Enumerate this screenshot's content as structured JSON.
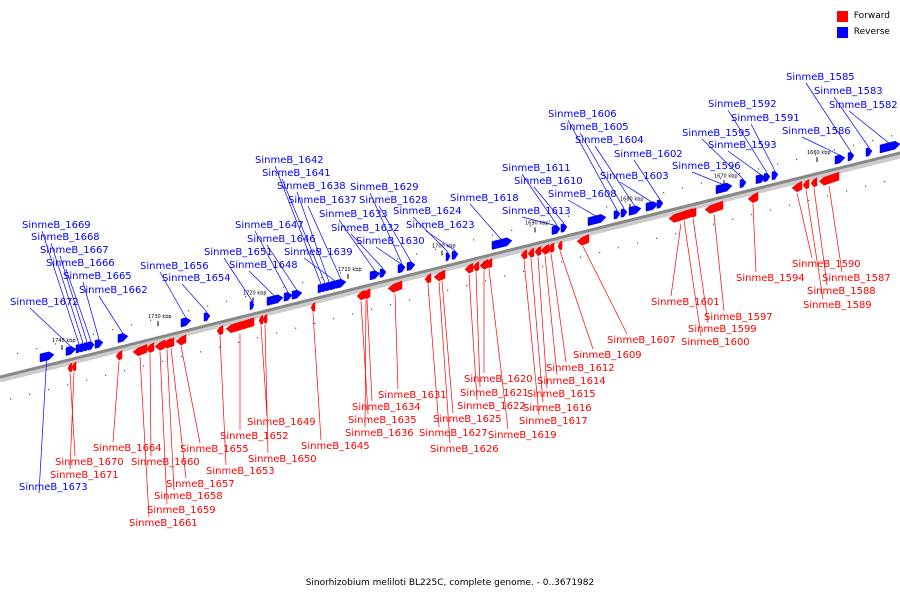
{
  "legend": [
    {
      "label": "Forward",
      "color": "#ff0000"
    },
    {
      "label": "Reverse",
      "color": "#0000ff"
    }
  ],
  "caption": "Sinorhizobium meliloti BL225C, complete genome. - 0..3671982",
  "colors": {
    "forward": "#ff0000",
    "reverse": "#0000ff",
    "axis": "#888888"
  },
  "ticks": [
    "1740 kbp",
    "1730 kbp",
    "1720 kbp",
    "1710 kbp",
    "1700 kbp",
    "1690 kbp",
    "1680 kbp",
    "1670 kbp",
    "1660 kbp"
  ],
  "genes": [
    {
      "name": "SinmeB_1673",
      "strand": "reverse"
    },
    {
      "name": "SinmeB_1672",
      "strand": "reverse"
    },
    {
      "name": "SinmeB_1671",
      "strand": "forward"
    },
    {
      "name": "SinmeB_1670",
      "strand": "forward"
    },
    {
      "name": "SinmeB_1669",
      "strand": "reverse"
    },
    {
      "name": "SinmeB_1668",
      "strand": "reverse"
    },
    {
      "name": "SinmeB_1667",
      "strand": "reverse"
    },
    {
      "name": "SinmeB_1666",
      "strand": "reverse"
    },
    {
      "name": "SinmeB_1665",
      "strand": "reverse"
    },
    {
      "name": "SinmeB_1664",
      "strand": "forward"
    },
    {
      "name": "SinmeB_1662",
      "strand": "reverse"
    },
    {
      "name": "SinmeB_1661",
      "strand": "forward"
    },
    {
      "name": "SinmeB_1660",
      "strand": "forward"
    },
    {
      "name": "SinmeB_1659",
      "strand": "forward"
    },
    {
      "name": "SinmeB_1658",
      "strand": "forward"
    },
    {
      "name": "SinmeB_1657",
      "strand": "forward"
    },
    {
      "name": "SinmeB_1656",
      "strand": "reverse"
    },
    {
      "name": "SinmeB_1655",
      "strand": "forward"
    },
    {
      "name": "SinmeB_1654",
      "strand": "reverse"
    },
    {
      "name": "SinmeB_1653",
      "strand": "forward"
    },
    {
      "name": "SinmeB_1652",
      "strand": "forward"
    },
    {
      "name": "SinmeB_1651",
      "strand": "reverse"
    },
    {
      "name": "SinmeB_1650",
      "strand": "forward"
    },
    {
      "name": "SinmeB_1649",
      "strand": "forward"
    },
    {
      "name": "SinmeB_1648",
      "strand": "reverse"
    },
    {
      "name": "SinmeB_1647",
      "strand": "reverse"
    },
    {
      "name": "SinmeB_1646",
      "strand": "reverse"
    },
    {
      "name": "SinmeB_1645",
      "strand": "forward"
    },
    {
      "name": "SinmeB_1642",
      "strand": "reverse"
    },
    {
      "name": "SinmeB_1641",
      "strand": "reverse"
    },
    {
      "name": "SinmeB_1639",
      "strand": "reverse"
    },
    {
      "name": "SinmeB_1638",
      "strand": "reverse"
    },
    {
      "name": "SinmeB_1637",
      "strand": "reverse"
    },
    {
      "name": "SinmeB_1636",
      "strand": "forward"
    },
    {
      "name": "SinmeB_1635",
      "strand": "forward"
    },
    {
      "name": "SinmeB_1634",
      "strand": "forward"
    },
    {
      "name": "SinmeB_1633",
      "strand": "reverse"
    },
    {
      "name": "SinmeB_1632",
      "strand": "reverse"
    },
    {
      "name": "SinmeB_1631",
      "strand": "forward"
    },
    {
      "name": "SinmeB_1630",
      "strand": "reverse"
    },
    {
      "name": "SinmeB_1629",
      "strand": "reverse"
    },
    {
      "name": "SinmeB_1628",
      "strand": "reverse"
    },
    {
      "name": "SinmeB_1627",
      "strand": "forward"
    },
    {
      "name": "SinmeB_1626",
      "strand": "forward"
    },
    {
      "name": "SinmeB_1625",
      "strand": "forward"
    },
    {
      "name": "SinmeB_1624",
      "strand": "reverse"
    },
    {
      "name": "SinmeB_1623",
      "strand": "reverse"
    },
    {
      "name": "SinmeB_1622",
      "strand": "forward"
    },
    {
      "name": "SinmeB_1621",
      "strand": "forward"
    },
    {
      "name": "SinmeB_1620",
      "strand": "forward"
    },
    {
      "name": "SinmeB_1619",
      "strand": "forward"
    },
    {
      "name": "SinmeB_1618",
      "strand": "reverse"
    },
    {
      "name": "SinmeB_1617",
      "strand": "forward"
    },
    {
      "name": "SinmeB_1616",
      "strand": "forward"
    },
    {
      "name": "SinmeB_1615",
      "strand": "forward"
    },
    {
      "name": "SinmeB_1614",
      "strand": "forward"
    },
    {
      "name": "SinmeB_1613",
      "strand": "reverse"
    },
    {
      "name": "SinmeB_1612",
      "strand": "forward"
    },
    {
      "name": "SinmeB_1611",
      "strand": "reverse"
    },
    {
      "name": "SinmeB_1610",
      "strand": "reverse"
    },
    {
      "name": "SinmeB_1609",
      "strand": "forward"
    },
    {
      "name": "SinmeB_1608",
      "strand": "reverse"
    },
    {
      "name": "SinmeB_1607",
      "strand": "forward"
    },
    {
      "name": "SinmeB_1606",
      "strand": "reverse"
    },
    {
      "name": "SinmeB_1605",
      "strand": "reverse"
    },
    {
      "name": "SinmeB_1604",
      "strand": "reverse"
    },
    {
      "name": "SinmeB_1603",
      "strand": "reverse"
    },
    {
      "name": "SinmeB_1602",
      "strand": "reverse"
    },
    {
      "name": "SinmeB_1601",
      "strand": "forward"
    },
    {
      "name": "SinmeB_1600",
      "strand": "forward"
    },
    {
      "name": "SinmeB_1599",
      "strand": "forward"
    },
    {
      "name": "SinmeB_1597",
      "strand": "forward"
    },
    {
      "name": "SinmeB_1596",
      "strand": "reverse"
    },
    {
      "name": "SinmeB_1595",
      "strand": "reverse"
    },
    {
      "name": "SinmeB_1594",
      "strand": "forward"
    },
    {
      "name": "SinmeB_1593",
      "strand": "reverse"
    },
    {
      "name": "SinmeB_1592",
      "strand": "reverse"
    },
    {
      "name": "SinmeB_1591",
      "strand": "reverse"
    },
    {
      "name": "SinmeB_1590",
      "strand": "forward"
    },
    {
      "name": "SinmeB_1589",
      "strand": "forward"
    },
    {
      "name": "SinmeB_1588",
      "strand": "forward"
    },
    {
      "name": "SinmeB_1587",
      "strand": "forward"
    },
    {
      "name": "SinmeB_1586",
      "strand": "reverse"
    },
    {
      "name": "SinmeB_1585",
      "strand": "reverse"
    },
    {
      "name": "SinmeB_1583",
      "strand": "reverse"
    },
    {
      "name": "SinmeB_1582",
      "strand": "reverse"
    }
  ]
}
